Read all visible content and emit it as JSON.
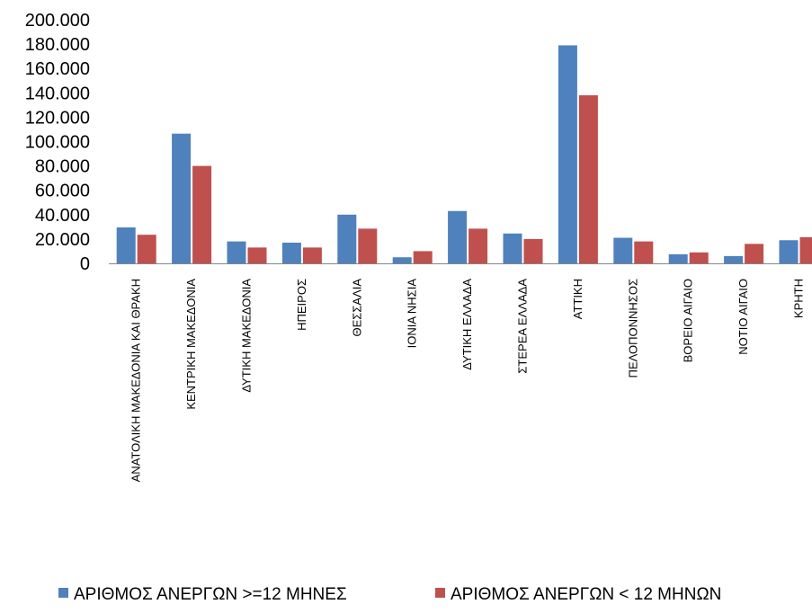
{
  "chart_data": {
    "type": "bar",
    "categories": [
      "ΑΝΑΤΟΛΙΚΗ ΜΑΚΕΔΟΝΙΑ ΚΑΙ ΘΡΑΚΗ",
      "ΚΕΝΤΡΙΚΗ ΜΑΚΕΔΟΝΙΑ",
      "ΔΥΤΙΚΗ ΜΑΚΕΔΟΝΙΑ",
      "ΗΠΕΙΡΟΣ",
      "ΘΕΣΣΑΛΙΑ",
      "ΙΟΝΙΑ ΝΗΣΙΑ",
      "ΔΥΤΙΚΗ ΕΛΛΑΔΑ",
      "ΣΤΕΡΕΑ ΕΛΛΑΔΑ",
      "ΑΤΤΙΚΗ",
      "ΠΕΛΟΠΟΝΝΗΣΟΣ",
      "ΒΟΡΕΙΟ ΑΙΓΑΙΟ",
      "ΝΟΤΙΟ ΑΙΓΑΙΟ",
      "ΚΡΗΤΗ"
    ],
    "series": [
      {
        "name": "ΑΡΙΘΜΟΣ ΑΝΕΡΓΩΝ >=12 ΜΗΝΕΣ",
        "color": "#4F81BD",
        "values": [
          29500,
          106500,
          18000,
          17000,
          40000,
          5000,
          43000,
          24500,
          179000,
          21000,
          7500,
          6000,
          19000
        ]
      },
      {
        "name": "ΑΡΙΘΜΟΣ ΑΝΕΡΓΩΝ < 12 ΜΗΝΩΝ",
        "color": "#C0504D",
        "values": [
          23500,
          80000,
          13000,
          13000,
          28500,
          10000,
          28500,
          20000,
          138000,
          18000,
          9000,
          16000,
          21500
        ]
      }
    ],
    "yticks": [
      "0",
      "20.000",
      "40.000",
      "60.000",
      "80.000",
      "100.000",
      "120.000",
      "140.000",
      "160.000",
      "180.000",
      "200.000"
    ],
    "ylim": [
      0,
      200000
    ],
    "grid": false,
    "legend_position": "bottom"
  }
}
